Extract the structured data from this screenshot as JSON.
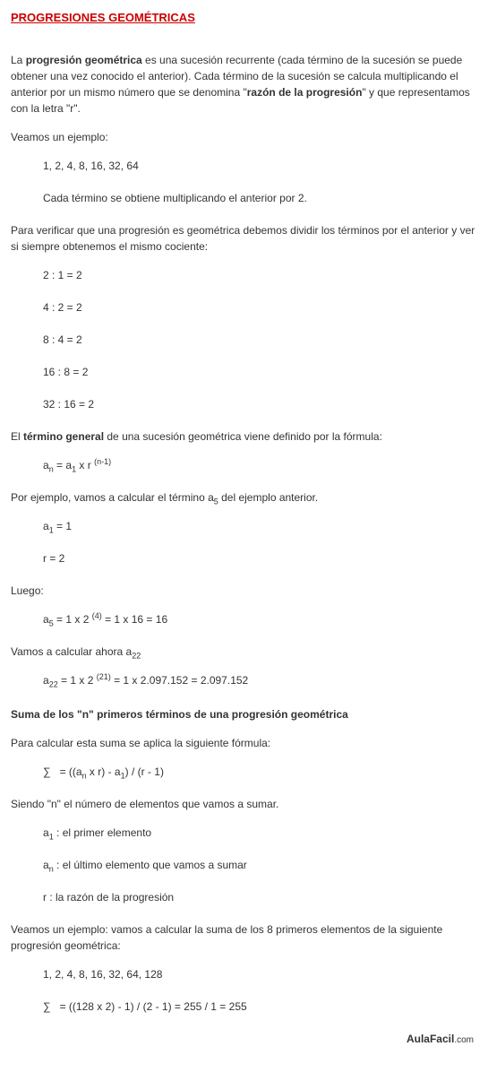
{
  "title": "PROGRESIONES GEOMÉTRICAS",
  "intro": {
    "p1_a": "La ",
    "p1_b": "progresión geométrica",
    "p1_c": " es una sucesión recurrente (cada término de la sucesión se puede obtener una vez conocido el anterior). Cada término de la sucesión se calcula multiplicando el anterior por un mismo número que se denomina \"",
    "p1_d": "razón de la progresión",
    "p1_e": "\" y que representamos con la letra \"r\"."
  },
  "ex_label": "Veamos un ejemplo:",
  "ex_seq": "1, 2, 4, 8, 16, 32, 64",
  "ex_note": "Cada término se obtiene multiplicando el anterior por 2.",
  "verify": "Para verificar que una progresión es geométrica debemos dividir los términos por el anterior  y ver si siempre obtenemos el mismo cociente:",
  "ratios": {
    "r1": "2 : 1 = 2",
    "r2": "4 : 2 = 2",
    "r3": "8 : 4 = 2",
    "r4": "16 : 8 = 2",
    "r5": "32 : 16 = 2"
  },
  "general_a": "El ",
  "general_b": "término general",
  "general_c": " de una sucesión geométrica viene definido por la fórmula:",
  "formula": {
    "lhs_base": "a",
    "lhs_sub": "n",
    "eq": " = a",
    "a1_sub": "1",
    "mid": " x r ",
    "exp": "(n-1)"
  },
  "calc5_a": "Por ejemplo, vamos a calcular el término a",
  "calc5_sub": "5",
  "calc5_b": " del ejemplo anterior.",
  "a1": {
    "t": "a",
    "s": "1",
    "r": " = 1"
  },
  "r": "r = 2",
  "luego": "Luego:",
  "a5": {
    "t": "a",
    "s": "5",
    "m": " = 1 x 2 ",
    "e": "(4)",
    "r": " = 1 x 16 = 16"
  },
  "calc22_a": "Vamos a calcular ahora a",
  "calc22_sub": "22",
  "a22": {
    "t": "a",
    "s": "22",
    "m": " = 1 x 2 ",
    "e": "(21)",
    "r": " = 1 x 2.097.152 = 2.097.152"
  },
  "sum_title": "Suma de los \"n\" primeros términos de una progresión geométrica",
  "sum_intro": "Para calcular esta suma se aplica la siguiente fórmula:",
  "sumf": {
    "sig": "∑",
    "a": "   = ((a",
    "sn": "n",
    "b": " x r) - a",
    "s1": "1",
    "c": ") / (r - 1)"
  },
  "sum_n": "Siendo \"n\" el número de elementos que vamos a sumar.",
  "defs": {
    "d1a": "a",
    "d1s": "1",
    "d1b": " : el primer elemento",
    "d2a": "a",
    "d2s": "n",
    "d2b": " : el último elemento que vamos a sumar",
    "d3": "r : la razón de la progresión"
  },
  "sum_ex": "Veamos un ejemplo: vamos a calcular la suma de los 8 primeros elementos de la siguiente progresión geométrica:",
  "sum_seq": "1, 2, 4, 8, 16, 32, 64, 128",
  "sum_calc": {
    "sig": "∑",
    "r": "   = ((128 x 2) - 1) / (2 - 1) = 255 / 1 = 255"
  },
  "footer": {
    "brand": "AulaFacil",
    "dom": ".com"
  }
}
